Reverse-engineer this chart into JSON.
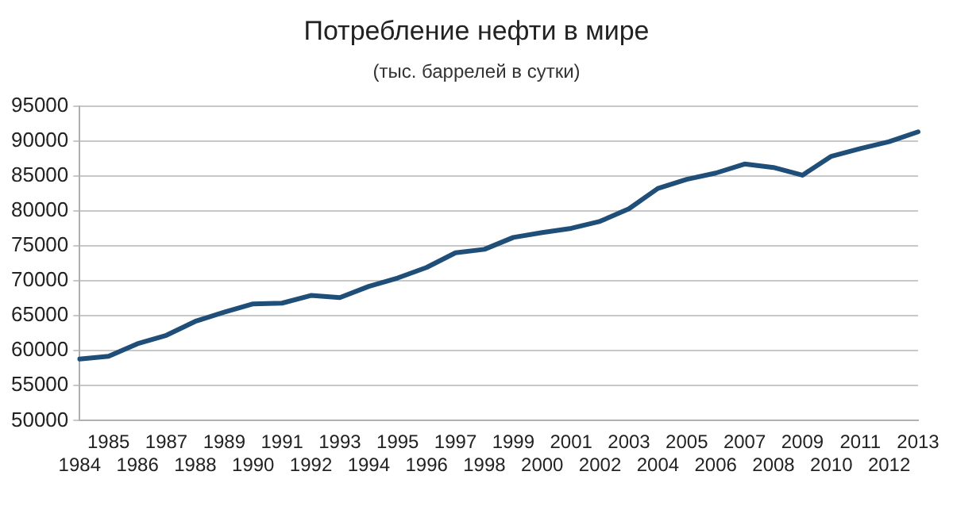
{
  "chart_data": {
    "type": "line",
    "title": "Потребление нефти в мире",
    "subtitle": "(тыс. баррелей в сутки)",
    "categories": [
      "1984",
      "1985",
      "1986",
      "1987",
      "1988",
      "1989",
      "1990",
      "1991",
      "1992",
      "1993",
      "1994",
      "1995",
      "1996",
      "1997",
      "1998",
      "1999",
      "2000",
      "2001",
      "2002",
      "2003",
      "2004",
      "2005",
      "2006",
      "2007",
      "2008",
      "2009",
      "2010",
      "2011",
      "2012",
      "2013"
    ],
    "series": [
      {
        "color": "#1f4e79",
        "values": [
          58800,
          59200,
          61000,
          62200,
          64200,
          65500,
          66700,
          66800,
          67900,
          67600,
          69200,
          70400,
          71900,
          74000,
          74500,
          76200,
          76900,
          77500,
          78500,
          80300,
          83200,
          84500,
          85400,
          86700,
          86200,
          85100,
          87800,
          88900,
          89900,
          91300
        ]
      }
    ],
    "ylim": [
      50000,
      95000
    ],
    "yticks": [
      50000,
      55000,
      60000,
      65000,
      70000,
      75000,
      80000,
      85000,
      90000,
      95000
    ],
    "grid": "y",
    "legend": false,
    "marker": "none",
    "line_style": "solid"
  }
}
